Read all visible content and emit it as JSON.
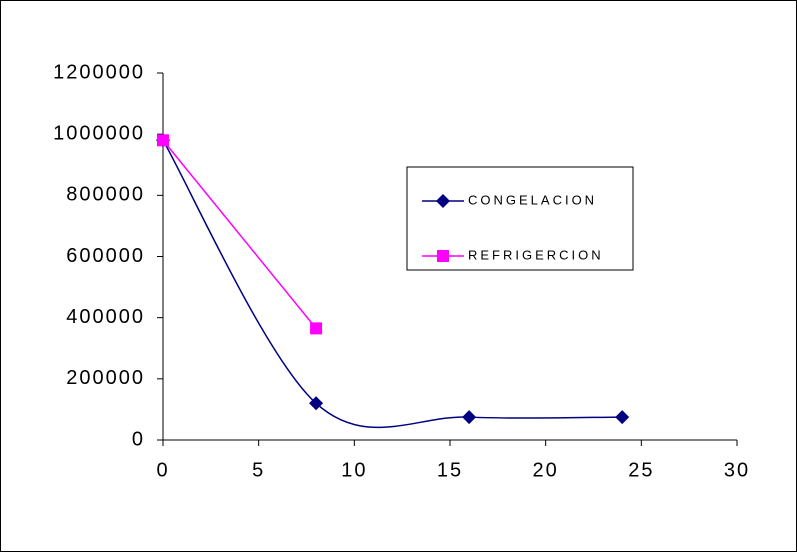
{
  "chart_data": {
    "type": "line",
    "series": [
      {
        "name": "CONGELACION",
        "color": "#000080",
        "marker": "diamond",
        "smooth": true,
        "x": [
          0,
          8,
          16,
          24
        ],
        "values": [
          980000,
          120000,
          75000,
          75000
        ]
      },
      {
        "name": "REFRIGERCION",
        "color": "#ff00ff",
        "marker": "square",
        "smooth": false,
        "x": [
          0,
          8
        ],
        "values": [
          980000,
          365000
        ]
      }
    ],
    "xlim": [
      0,
      30
    ],
    "xticks": [
      0,
      5,
      10,
      15,
      20,
      25,
      30
    ],
    "ylim": [
      0,
      1200000
    ],
    "yticks": [
      0,
      200000,
      400000,
      600000,
      800000,
      1000000,
      1200000
    ],
    "legend": "right"
  }
}
